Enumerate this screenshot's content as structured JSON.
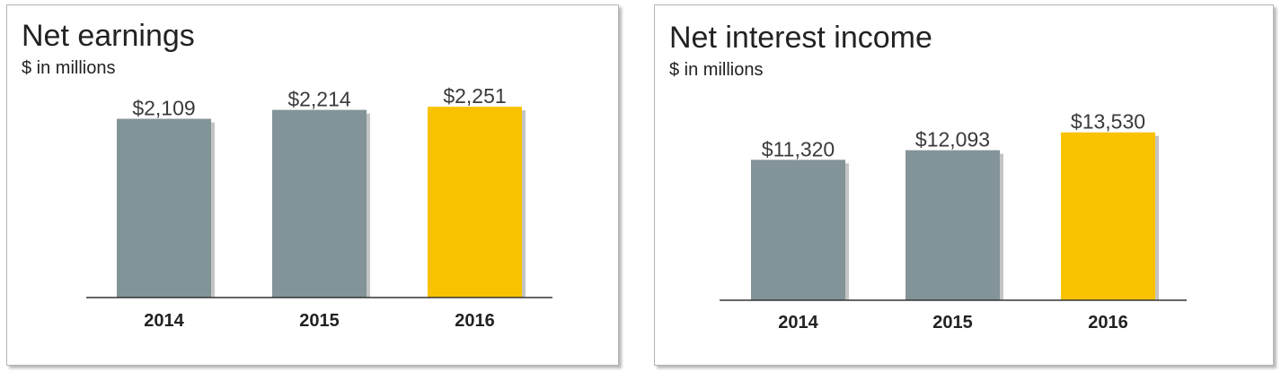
{
  "chart_data": [
    {
      "type": "bar",
      "title": "Net earnings",
      "subtitle": "$ in millions",
      "categories": [
        "2014",
        "2015",
        "2016"
      ],
      "values": [
        2109,
        2214,
        2251
      ],
      "value_labels": [
        "$2,109",
        "$2,214",
        "$2,251"
      ],
      "bar_colors": [
        "#839498",
        "#839498",
        "#f9c200"
      ],
      "ylim": [
        0,
        2400
      ],
      "grid": false,
      "legend": "none"
    },
    {
      "type": "bar",
      "title": "Net interest income",
      "subtitle": "$ in millions",
      "categories": [
        "2014",
        "2015",
        "2016"
      ],
      "values": [
        11320,
        12093,
        13530
      ],
      "value_labels": [
        "$11,320",
        "$12,093",
        "$13,530"
      ],
      "bar_colors": [
        "#839498",
        "#839498",
        "#f9c200"
      ],
      "ylim": [
        0,
        16400
      ],
      "grid": false,
      "legend": "none"
    }
  ]
}
